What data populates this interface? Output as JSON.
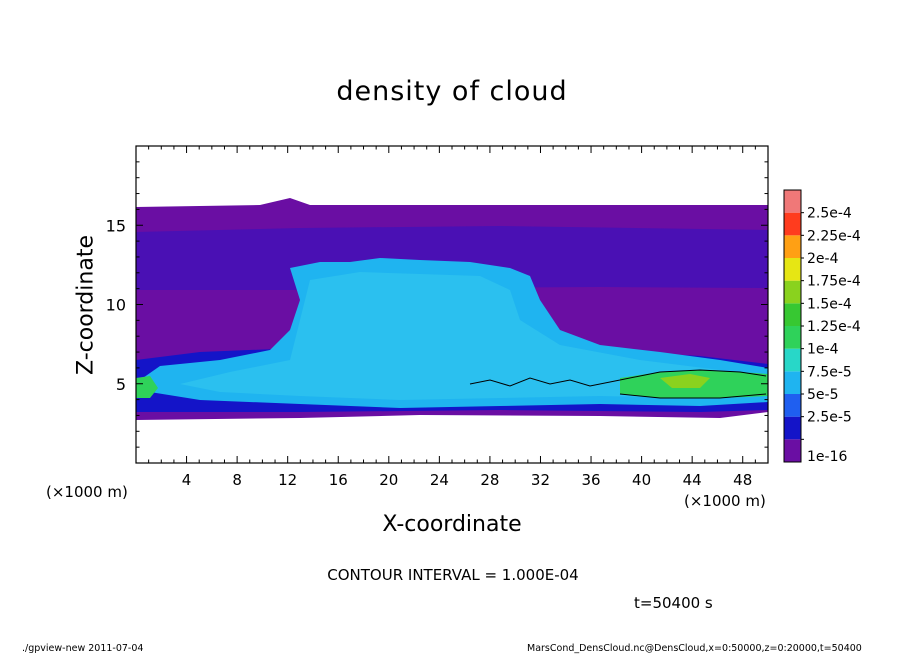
{
  "chart_data": {
    "type": "heatmap",
    "title": "density of cloud",
    "xlabel": "X-coordinate",
    "ylabel": "Z-coordinate",
    "x_unit": "(×1000 m)",
    "y_unit": "(×1000 m)",
    "xlim": [
      0,
      50
    ],
    "ylim": [
      0,
      20
    ],
    "x_ticks": [
      "4",
      "8",
      "12",
      "16",
      "20",
      "24",
      "28",
      "32",
      "36",
      "40",
      "44",
      "48"
    ],
    "y_ticks": [
      "5",
      "10",
      "15"
    ],
    "colorbar": {
      "labels": [
        "1e-16",
        "2.5e-5",
        "5e-5",
        "7.5e-5",
        "1e-4",
        "1.25e-4",
        "1.5e-4",
        "1.75e-4",
        "2e-4",
        "2.25e-4",
        "2.5e-4"
      ],
      "colors": [
        "#6a0ea3",
        "#1414c8",
        "#1f5ff0",
        "#1fb4f0",
        "#28d7c8",
        "#2fd25a",
        "#37c832",
        "#8ad21e",
        "#e6e614",
        "#ffa014",
        "#ff3c1e",
        "#f07878"
      ]
    },
    "contour_interval": "CONTOUR INTERVAL = 1.000E-04",
    "time": "t=50400 s"
  },
  "footer": {
    "left": "./gpview-new   2011-07-04",
    "right": "MarsCond_DensCloud.nc@DensCloud,x=0:50000,z=0:20000,t=50400"
  }
}
